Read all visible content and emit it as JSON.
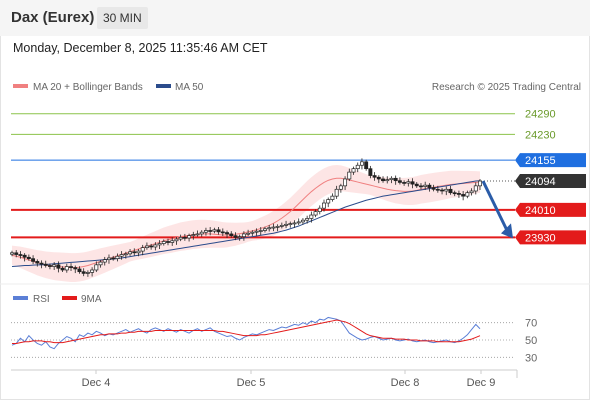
{
  "header": {
    "title": "Dax (Eurex)",
    "timeframe": "30 MIN",
    "datetime": "Monday, December 8, 2025 11:35:46 AM CET"
  },
  "legend": {
    "items": [
      {
        "label": "MA 20 + Bollinger Bands",
        "color": "#f08080"
      },
      {
        "label": "MA 50",
        "color": "#2b4c8c"
      }
    ],
    "credit": "Research © 2025 Trading Central"
  },
  "price_levels": [
    {
      "value": 24290,
      "label": "24290",
      "kind": "target",
      "color": "#8bc34a"
    },
    {
      "value": 24230,
      "label": "24230",
      "kind": "target",
      "color": "#8bc34a"
    },
    {
      "value": 24155,
      "label": "24155",
      "kind": "pivot",
      "color": "#1f6fe0"
    },
    {
      "value": 24094,
      "label": "24094",
      "kind": "last",
      "color": "#333333"
    },
    {
      "value": 24010,
      "label": "24010",
      "kind": "support",
      "color": "#e31b1b"
    },
    {
      "value": 23930,
      "label": "23930",
      "kind": "support",
      "color": "#e31b1b"
    }
  ],
  "rsi_panel": {
    "legend": [
      {
        "label": "RSI",
        "color": "#5b7fd6"
      },
      {
        "label": "9MA",
        "color": "#e31b1b"
      }
    ],
    "ticks": [
      "70",
      "50",
      "30"
    ]
  },
  "x_axis": [
    "Dec 4",
    "Dec 5",
    "Dec 8",
    "Dec 9"
  ],
  "chart_data": {
    "type": "candlestick",
    "y_range": [
      23800,
      24330
    ],
    "closes": [
      23885,
      23880,
      23878,
      23872,
      23868,
      23860,
      23855,
      23852,
      23848,
      23845,
      23850,
      23840,
      23835,
      23845,
      23842,
      23838,
      23830,
      23825,
      23828,
      23835,
      23850,
      23858,
      23865,
      23870,
      23868,
      23875,
      23880,
      23882,
      23888,
      23885,
      23890,
      23900,
      23905,
      23902,
      23908,
      23912,
      23918,
      23915,
      23920,
      23925,
      23930,
      23928,
      23935,
      23938,
      23940,
      23945,
      23950,
      23948,
      23952,
      23946,
      23944,
      23940,
      23935,
      23930,
      23932,
      23940,
      23942,
      23945,
      23948,
      23950,
      23955,
      23958,
      23960,
      23962,
      23965,
      23968,
      23970,
      23972,
      23975,
      23980,
      23985,
      23995,
      24005,
      24015,
      24030,
      24040,
      24050,
      24070,
      24080,
      24100,
      24120,
      24130,
      24140,
      24150,
      24130,
      24110,
      24105,
      24100,
      24095,
      24098,
      24102,
      24095,
      24090,
      24088,
      24092,
      24085,
      24080,
      24078,
      24082,
      24075,
      24070,
      24068,
      24065,
      24070,
      24060,
      24058,
      24055,
      24050,
      24060,
      24065,
      24080,
      24094
    ],
    "ma20": [
      23878,
      23875,
      23872,
      23868,
      23864,
      23860,
      23856,
      23853,
      23850,
      23848,
      23846,
      23845,
      23844,
      23843,
      23842,
      23842,
      23843,
      23845,
      23848,
      23852,
      23856,
      23860,
      23864,
      23868,
      23872,
      23876,
      23880,
      23884,
      23888,
      23892,
      23896,
      23900,
      23904,
      23908,
      23912,
      23916,
      23920,
      23923,
      23926,
      23929,
      23932,
      23934,
      23936,
      23938,
      23939,
      23940,
      23940,
      23940,
      23939,
      23938,
      23937,
      23937,
      23938,
      23939,
      23941,
      23943,
      23946,
      23949,
      23952,
      23956,
      23960,
      23965,
      23971,
      23978,
      23986,
      23995,
      24005,
      24016,
      24028,
      24040,
      24052,
      24063,
      24073,
      24082,
      24090,
      24096,
      24100,
      24102,
      24102,
      24100,
      24097,
      24094,
      24091,
      24088,
      24085,
      24082,
      24079,
      24076,
      24073,
      24070,
      24068,
      24066,
      24065,
      24064,
      24064,
      24065,
      24067,
      24070,
      24072,
      24074,
      24076,
      24078,
      24080,
      24082,
      24084,
      24085,
      24086,
      24087,
      24088,
      24089,
      24090,
      24091
    ],
    "ma50": [
      23845,
      23846,
      23847,
      23848,
      23848,
      23849,
      23850,
      23850,
      23851,
      23852,
      23853,
      23854,
      23855,
      23856,
      23857,
      23858,
      23859,
      23860,
      23861,
      23862,
      23863,
      23864,
      23865,
      23866,
      23867,
      23868,
      23870,
      23872,
      23874,
      23876,
      23878,
      23880,
      23882,
      23884,
      23886,
      23888,
      23890,
      23892,
      23894,
      23896,
      23898,
      23900,
      23902,
      23904,
      23906,
      23908,
      23910,
      23912,
      23914,
      23916,
      23918,
      23920,
      23922,
      23924,
      23926,
      23928,
      23930,
      23932,
      23934,
      23936,
      23938,
      23940,
      23942,
      23945,
      23948,
      23951,
      23955,
      23959,
      23963,
      23968,
      23973,
      23978,
      23983,
      23988,
      23993,
      23998,
      24003,
      24008,
      24013,
      24018,
      24022,
      24026,
      24030,
      24034,
      24038,
      24041,
      24044,
      24047,
      24050,
      24052,
      24054,
      24056,
      24058,
      24060,
      24062,
      24064,
      24066,
      24068,
      24070,
      24072,
      24074,
      24076,
      24078,
      24080,
      24082,
      24084,
      24086,
      24088,
      24090,
      24092,
      24094,
      24095
    ],
    "rsi": [
      44,
      46,
      52,
      48,
      55,
      50,
      46,
      44,
      48,
      42,
      40,
      46,
      50,
      54,
      52,
      48,
      56,
      54,
      58,
      56,
      60,
      58,
      55,
      57,
      56,
      58,
      60,
      62,
      59,
      61,
      63,
      60,
      58,
      62,
      64,
      62,
      60,
      63,
      61,
      59,
      62,
      60,
      58,
      61,
      63,
      60,
      62,
      64,
      60,
      58,
      56,
      54,
      55,
      52,
      50,
      53,
      55,
      57,
      56,
      58,
      60,
      62,
      61,
      63,
      65,
      64,
      66,
      68,
      67,
      70,
      68,
      72,
      70,
      74,
      73,
      76,
      75,
      74,
      72,
      65,
      58,
      55,
      52,
      50,
      51,
      53,
      54,
      52,
      50,
      51,
      52,
      50,
      49,
      50,
      51,
      49,
      48,
      49,
      50,
      48,
      47,
      48,
      49,
      50,
      48,
      47,
      49,
      52,
      56,
      62,
      68,
      63
    ],
    "rsi_ma": [
      46,
      46,
      47,
      48,
      48,
      49,
      49,
      49,
      48,
      48,
      47,
      47,
      47,
      48,
      49,
      50,
      51,
      52,
      53,
      54,
      55,
      56,
      56,
      57,
      57,
      57,
      58,
      58,
      59,
      59,
      60,
      60,
      60,
      60,
      61,
      61,
      61,
      61,
      61,
      61,
      61,
      61,
      61,
      61,
      61,
      61,
      61,
      61,
      61,
      60,
      60,
      59,
      58,
      57,
      56,
      55,
      55,
      55,
      55,
      56,
      56,
      57,
      58,
      59,
      60,
      61,
      62,
      63,
      64,
      65,
      66,
      67,
      68,
      69,
      70,
      71,
      72,
      73,
      72,
      71,
      69,
      66,
      63,
      60,
      57,
      55,
      54,
      53,
      52,
      52,
      52,
      51,
      51,
      51,
      50,
      50,
      50,
      49,
      49,
      49,
      49,
      48,
      48,
      48,
      48,
      48,
      48,
      49,
      50,
      51,
      53,
      55
    ],
    "forecast_arrow": {
      "from": 24094,
      "to": 23930,
      "direction": "down"
    }
  }
}
